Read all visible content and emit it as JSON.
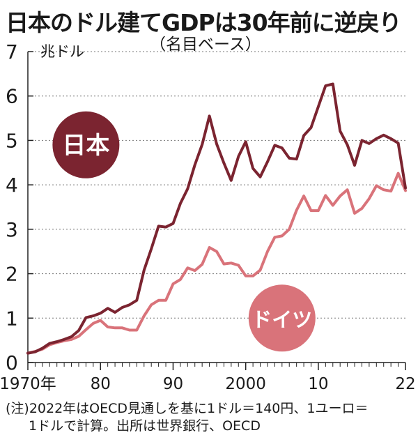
{
  "title": "日本のドル建てGDPは30年前に逆戻り",
  "subtitle": "（名目ベース）",
  "note_line1": "(注)2022年はOECD見通しを基に1ドル＝140円、1ユーロ＝",
  "note_line2": "1ドルで計算。出所は世界銀行、OECD",
  "colors": {
    "japan": "#7b2430",
    "germany": "#d9737a",
    "grid": "#777777",
    "axis": "#222222"
  },
  "chart_data": {
    "type": "line",
    "title": "日本のドル建てGDPは30年前に逆戻り",
    "subtitle": "（名目ベース）",
    "ylabel": "兆ドル",
    "ylim": [
      0,
      7
    ],
    "xlim": [
      1970,
      2022
    ],
    "grid": "horizontal dotted",
    "ytick_labels": [
      "0",
      "1",
      "2",
      "3",
      "4",
      "5",
      "6",
      "7"
    ],
    "ytick_values": [
      0,
      1,
      2,
      3,
      4,
      5,
      6,
      7
    ],
    "xtick_labels": [
      "1970年",
      "80",
      "90",
      "2000",
      "10",
      "22"
    ],
    "xtick_values": [
      1970,
      1980,
      1990,
      2000,
      2010,
      2022
    ],
    "x": [
      1970,
      1971,
      1972,
      1973,
      1974,
      1975,
      1976,
      1977,
      1978,
      1979,
      1980,
      1981,
      1982,
      1983,
      1984,
      1985,
      1986,
      1987,
      1988,
      1989,
      1990,
      1991,
      1992,
      1993,
      1994,
      1995,
      1996,
      1997,
      1998,
      1999,
      2000,
      2001,
      2002,
      2003,
      2004,
      2005,
      2006,
      2007,
      2008,
      2009,
      2010,
      2011,
      2012,
      2013,
      2014,
      2015,
      2016,
      2017,
      2018,
      2019,
      2020,
      2021,
      2022
    ],
    "series": [
      {
        "name": "日本",
        "key": "japan",
        "values": [
          0.21,
          0.24,
          0.32,
          0.43,
          0.47,
          0.52,
          0.58,
          0.72,
          1.01,
          1.05,
          1.11,
          1.22,
          1.13,
          1.24,
          1.3,
          1.4,
          2.08,
          2.56,
          3.07,
          3.05,
          3.13,
          3.58,
          3.91,
          4.45,
          4.91,
          5.55,
          4.92,
          4.49,
          4.1,
          4.64,
          4.97,
          4.37,
          4.18,
          4.52,
          4.89,
          4.83,
          4.6,
          4.58,
          5.11,
          5.29,
          5.76,
          6.23,
          6.27,
          5.21,
          4.9,
          4.44,
          5.0,
          4.93,
          5.04,
          5.12,
          5.04,
          4.94,
          3.93
        ]
      },
      {
        "name": "ドイツ",
        "key": "germany",
        "values": [
          0.21,
          0.25,
          0.3,
          0.4,
          0.45,
          0.49,
          0.52,
          0.59,
          0.74,
          0.88,
          0.95,
          0.8,
          0.78,
          0.78,
          0.73,
          0.73,
          1.05,
          1.3,
          1.4,
          1.4,
          1.77,
          1.87,
          2.13,
          2.07,
          2.21,
          2.59,
          2.5,
          2.22,
          2.24,
          2.19,
          1.95,
          1.95,
          2.08,
          2.5,
          2.82,
          2.85,
          3.0,
          3.43,
          3.75,
          3.42,
          3.42,
          3.76,
          3.54,
          3.75,
          3.89,
          3.36,
          3.47,
          3.69,
          3.98,
          3.89,
          3.86,
          4.26,
          3.87
        ]
      }
    ],
    "annotations": [
      {
        "text": "日本",
        "series": "japan"
      },
      {
        "text": "ドイツ",
        "series": "germany"
      }
    ]
  }
}
